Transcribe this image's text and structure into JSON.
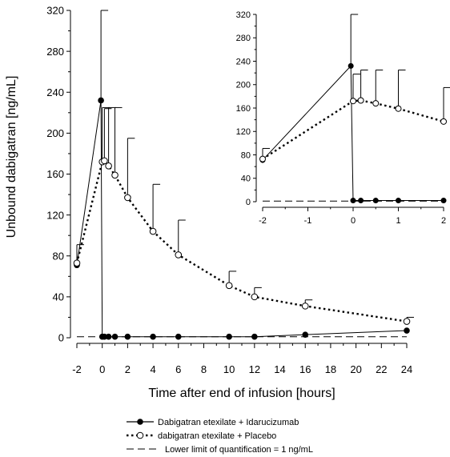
{
  "chart_data": [
    {
      "type": "line",
      "panel": "main",
      "xlabel": "Time after end of infusion [hours]",
      "ylabel": "Unbound dabigatran [ng/mL]",
      "xlim": [
        -2,
        24
      ],
      "ylim": [
        0,
        320
      ],
      "xticks": [
        -2,
        0,
        2,
        4,
        6,
        8,
        10,
        12,
        14,
        16,
        18,
        20,
        22,
        24
      ],
      "yticks": [
        0,
        40,
        80,
        120,
        160,
        200,
        240,
        280,
        320
      ],
      "series": [
        {
          "name": "Dabigatran etexilate + Idarucizumab",
          "marker": "filled-circle",
          "line": "solid",
          "x": [
            -2,
            -0.1,
            0,
            0.17,
            0.5,
            1,
            2,
            4,
            6,
            10,
            12,
            16,
            24
          ],
          "y": [
            71,
            232,
            1,
            1,
            1,
            1,
            1,
            1,
            1,
            1,
            1,
            3,
            7
          ],
          "error_upper": [
            null,
            320,
            null,
            null,
            null,
            null,
            null,
            null,
            null,
            null,
            null,
            null,
            null
          ]
        },
        {
          "name": "dabigatran etexilate + Placebo",
          "marker": "open-circle",
          "line": "dotted",
          "x": [
            -2,
            0,
            0.17,
            0.5,
            1,
            2,
            4,
            6,
            10,
            12,
            16,
            24
          ],
          "y": [
            73,
            172,
            173,
            168,
            159,
            137,
            104,
            81,
            51,
            40,
            31,
            16
          ],
          "error_upper": [
            91,
            225,
            224,
            225,
            225,
            195,
            150,
            115,
            65,
            49,
            37,
            20
          ]
        }
      ],
      "reference_line": {
        "name": "Lower limit of quantification = 1 ng/mL",
        "y": 1,
        "style": "dashed"
      }
    },
    {
      "type": "line",
      "panel": "inset",
      "xlim": [
        -2,
        2
      ],
      "ylim": [
        0,
        320
      ],
      "xticks": [
        -2,
        -1,
        0,
        1,
        2
      ],
      "yticks": [
        0,
        40,
        80,
        120,
        160,
        200,
        240,
        280,
        320
      ],
      "series": [
        {
          "name": "Dabigatran etexilate + Idarucizumab",
          "marker": "filled-circle",
          "line": "solid",
          "x": [
            -2,
            -0.05,
            0,
            0.17,
            0.5,
            1,
            2
          ],
          "y": [
            71,
            232,
            2,
            2,
            2,
            2,
            2
          ],
          "error_upper": [
            null,
            320,
            null,
            null,
            null,
            null,
            null
          ]
        },
        {
          "name": "dabigatran etexilate + Placebo",
          "marker": "open-circle",
          "line": "dotted",
          "x": [
            -2,
            0,
            0.17,
            0.5,
            1,
            2
          ],
          "y": [
            73,
            172,
            173,
            168,
            159,
            137
          ],
          "error_upper": [
            91,
            218,
            225,
            225,
            225,
            195
          ]
        }
      ],
      "reference_line": {
        "y": 1,
        "style": "dashed"
      }
    }
  ],
  "legend": {
    "placement": "bottom",
    "items": [
      "Dabigatran etexilate + Idarucizumab",
      "dabigatran etexilate + Placebo",
      "Lower limit of quantification = 1 ng/mL"
    ]
  }
}
